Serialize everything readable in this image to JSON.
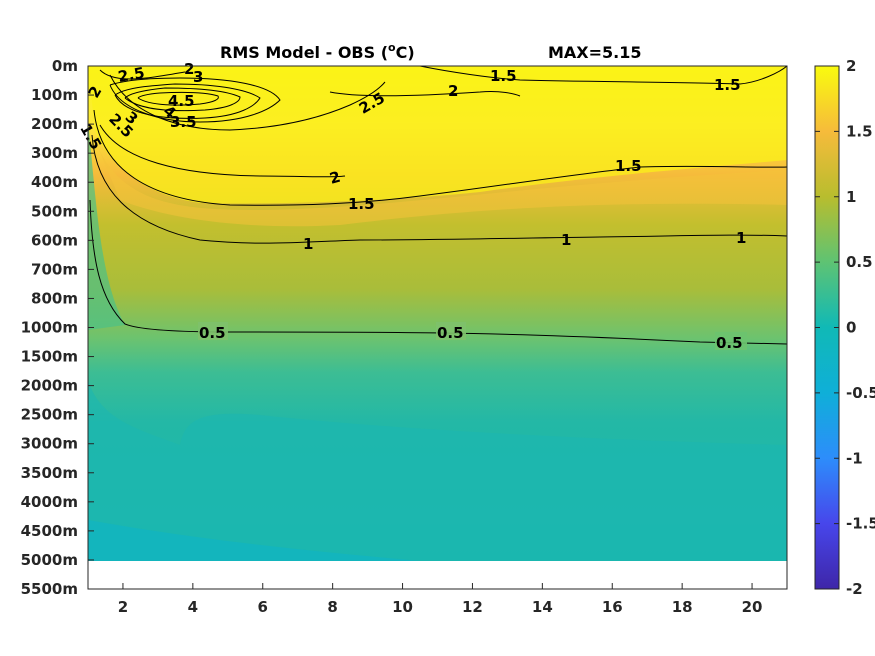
{
  "chart_data": {
    "type": "heatmap",
    "title": "RMS Model - OBS (",
    "title_unit_sup": "o",
    "title_unit_end": "C)",
    "annotation": "MAX=5.15",
    "x_ticks": [
      "2",
      "4",
      "6",
      "8",
      "10",
      "12",
      "14",
      "16",
      "18",
      "20"
    ],
    "xlim": [
      1,
      21
    ],
    "y_ticks": [
      "0m",
      "100m",
      "200m",
      "300m",
      "400m",
      "500m",
      "600m",
      "700m",
      "800m",
      "1000m",
      "1500m",
      "2000m",
      "2500m",
      "3000m",
      "3500m",
      "4000m",
      "4500m",
      "5000m",
      "5500m"
    ],
    "data_bottom_level": "5000m",
    "colorbar": {
      "range": [
        -2,
        2
      ],
      "ticks": [
        "2",
        "1.5",
        "1",
        "0.5",
        "0",
        "-0.5",
        "-1",
        "-1.5",
        "-2"
      ],
      "colormap": "parula"
    },
    "contours": [
      {
        "level": 0.5,
        "labels": [
          "0.5",
          "0.5",
          "0.5"
        ]
      },
      {
        "level": 1,
        "labels": [
          "1",
          "1",
          "1"
        ]
      },
      {
        "level": 1.5,
        "labels": [
          "1.5",
          "1.5",
          "1.5",
          "1.5",
          "1.5"
        ]
      },
      {
        "level": 2,
        "labels": [
          "2",
          "2",
          "2",
          "2"
        ]
      },
      {
        "level": 2.5,
        "labels": [
          "2.5",
          "2.5",
          "2.5"
        ]
      },
      {
        "level": 3,
        "labels": [
          "3",
          "3"
        ]
      },
      {
        "level": 3.5,
        "labels": [
          "3.5"
        ]
      },
      {
        "level": 4,
        "labels": [
          "4"
        ]
      },
      {
        "level": 4.5,
        "labels": [
          "4.5"
        ]
      }
    ],
    "grid": false,
    "legend": "none",
    "colors": {
      "yellow": "#f9fb0e",
      "orange": "#f6bb3b",
      "olive": "#b2bb2e",
      "green": "#86c35f",
      "teal": "#1fb5a9",
      "cyan": "#11b7c4",
      "blue": "#2d5fdc",
      "navy": "#3e26a8"
    }
  }
}
